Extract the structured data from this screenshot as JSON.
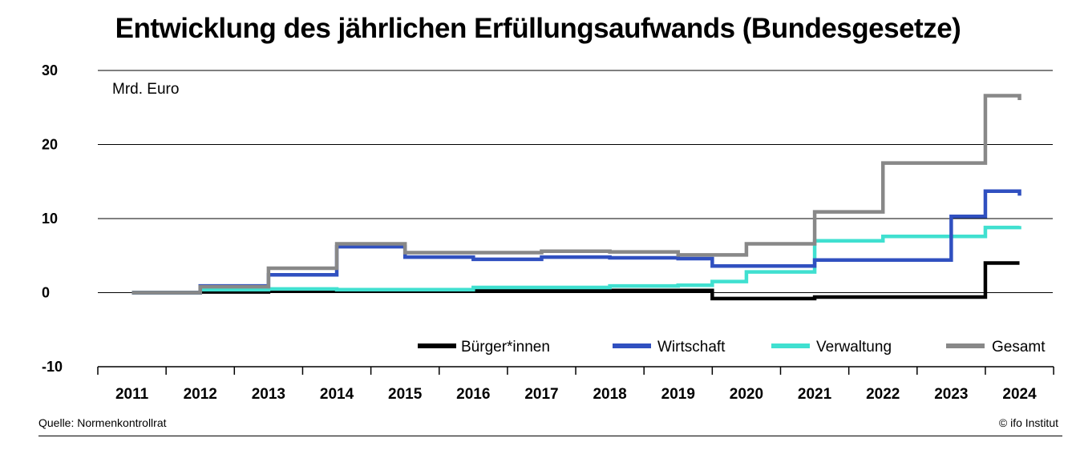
{
  "chart_data": {
    "type": "line",
    "title": "Entwicklung des jährlichen Erfüllungsaufwands (Bundesgesetze)",
    "unit_label": "Mrd. Euro",
    "categories": [
      "2011",
      "2012",
      "2013",
      "2014",
      "2015",
      "2016",
      "2017",
      "2018",
      "2019",
      "2020",
      "2021",
      "2022",
      "2023",
      "2024"
    ],
    "ylim": [
      -10,
      30
    ],
    "yticks": [
      -10,
      0,
      10,
      20,
      30
    ],
    "grid": true,
    "legend_position": "bottom-right",
    "series": [
      {
        "name": "Bürger*innen",
        "color": "#000000",
        "points": [
          [
            2011.0,
            0
          ],
          [
            2011.5,
            0
          ],
          [
            2012.0,
            0.1
          ],
          [
            2013.0,
            0.3
          ],
          [
            2014.0,
            0.3
          ],
          [
            2015.0,
            0.3
          ],
          [
            2016.0,
            0.3
          ],
          [
            2017.0,
            0.3
          ],
          [
            2018.0,
            0.3
          ],
          [
            2019.0,
            0.3
          ],
          [
            2019.5,
            -0.8
          ],
          [
            2020.0,
            -0.8
          ],
          [
            2021.0,
            -0.6
          ],
          [
            2022.0,
            -0.6
          ],
          [
            2023.0,
            -0.6
          ],
          [
            2023.5,
            4.0
          ],
          [
            2024.0,
            4.0
          ]
        ]
      },
      {
        "name": "Wirtschaft",
        "color": "#3050C0",
        "points": [
          [
            2011.0,
            0
          ],
          [
            2011.5,
            0
          ],
          [
            2012.0,
            0.9
          ],
          [
            2013.0,
            2.4
          ],
          [
            2014.0,
            6.2
          ],
          [
            2015.0,
            4.8
          ],
          [
            2016.0,
            4.5
          ],
          [
            2017.0,
            4.8
          ],
          [
            2018.0,
            4.7
          ],
          [
            2019.0,
            4.6
          ],
          [
            2019.5,
            3.6
          ],
          [
            2020.0,
            3.6
          ],
          [
            2021.0,
            4.4
          ],
          [
            2022.0,
            4.4
          ],
          [
            2023.0,
            10.3
          ],
          [
            2023.5,
            13.7
          ],
          [
            2024.0,
            13.1
          ]
        ]
      },
      {
        "name": "Verwaltung",
        "color": "#40E0D0",
        "points": [
          [
            2011.0,
            0
          ],
          [
            2011.5,
            0
          ],
          [
            2012.0,
            0.4
          ],
          [
            2013.0,
            0.5
          ],
          [
            2014.0,
            0.4
          ],
          [
            2015.0,
            0.4
          ],
          [
            2016.0,
            0.7
          ],
          [
            2017.0,
            0.7
          ],
          [
            2018.0,
            0.9
          ],
          [
            2019.0,
            1.0
          ],
          [
            2019.5,
            1.5
          ],
          [
            2020.0,
            2.8
          ],
          [
            2021.0,
            7.0
          ],
          [
            2022.0,
            7.6
          ],
          [
            2023.0,
            7.6
          ],
          [
            2023.5,
            8.8
          ],
          [
            2024.0,
            9.0
          ]
        ]
      },
      {
        "name": "Gesamt",
        "color": "#888888",
        "points": [
          [
            2011.0,
            0
          ],
          [
            2011.5,
            0
          ],
          [
            2012.0,
            0.8
          ],
          [
            2013.0,
            3.3
          ],
          [
            2014.0,
            6.6
          ],
          [
            2015.0,
            5.4
          ],
          [
            2016.0,
            5.4
          ],
          [
            2017.0,
            5.6
          ],
          [
            2018.0,
            5.5
          ],
          [
            2019.0,
            5.1
          ],
          [
            2019.5,
            5.1
          ],
          [
            2020.0,
            6.6
          ],
          [
            2021.0,
            10.9
          ],
          [
            2022.0,
            17.5
          ],
          [
            2023.0,
            17.5
          ],
          [
            2023.5,
            26.6
          ],
          [
            2024.0,
            26.0
          ]
        ]
      }
    ]
  },
  "footer": {
    "source": "Quelle: Normenkontrollrat",
    "credit": "© ifo Institut"
  }
}
